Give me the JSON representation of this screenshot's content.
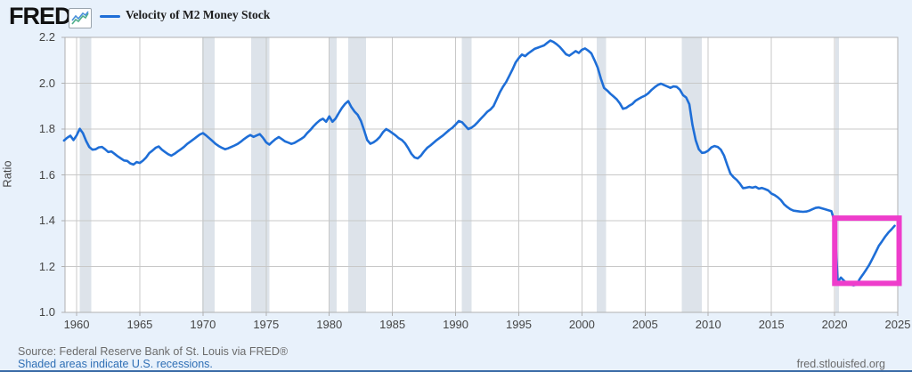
{
  "header": {
    "logo_text": "FRED",
    "registered_mark": "®",
    "logo_icon": "line-chart-sparkline-icon",
    "legend": {
      "swatch_color": "#1e6ed7",
      "label": "Velocity of M2 Money Stock"
    }
  },
  "footer": {
    "source": "Source: Federal Reserve Bank of St. Louis via FRED®",
    "recession_note": "Shaded areas indicate U.S. recessions.",
    "site": "fred.stlouisfed.org"
  },
  "colors": {
    "page_bg": "#e8f1fb",
    "plot_bg": "#ffffff",
    "grid": "#c8c8c8",
    "plot_border": "#b0b0b0",
    "recession_band": "#dde3ea",
    "line": "#1e6ed7",
    "highlight_box": "#ee3dcb",
    "link": "#2f6fb5",
    "text_muted": "#6b6b6b",
    "bottom_bar": "#3a6ba6",
    "icon_line_blue": "#4a90d9",
    "icon_line_green": "#4fae8b"
  },
  "chart_data": {
    "type": "line",
    "title": "Velocity of M2 Money Stock",
    "xlabel": "",
    "ylabel": "Ratio",
    "xlim": [
      1959.08,
      2025.0
    ],
    "ylim": [
      1.0,
      2.2
    ],
    "x_ticks": [
      1960,
      1965,
      1970,
      1975,
      1980,
      1985,
      1990,
      1995,
      2000,
      2005,
      2010,
      2015,
      2020,
      2025
    ],
    "y_ticks": [
      1.0,
      1.2,
      1.4,
      1.6,
      1.8,
      2.0,
      2.2
    ],
    "grid": true,
    "legend_position": "top-left",
    "recessions": [
      [
        1960.25,
        1961.17
      ],
      [
        1969.92,
        1970.92
      ],
      [
        1973.83,
        1975.25
      ],
      [
        1980.0,
        1980.58
      ],
      [
        1981.5,
        1982.92
      ],
      [
        1990.5,
        1991.25
      ],
      [
        2001.17,
        2001.92
      ],
      [
        2007.92,
        2009.5
      ],
      [
        2020.08,
        2020.33
      ]
    ],
    "highlight_box": {
      "year_range": [
        2019.8,
        2025.32
      ],
      "value_range": [
        1.115,
        1.423
      ]
    },
    "series": [
      {
        "name": "Velocity of M2 Money Stock",
        "color": "#1e6ed7",
        "points": [
          [
            1959.0,
            1.75
          ],
          [
            1959.25,
            1.762
          ],
          [
            1959.5,
            1.771
          ],
          [
            1959.75,
            1.752
          ],
          [
            1960.0,
            1.772
          ],
          [
            1960.25,
            1.801
          ],
          [
            1960.5,
            1.782
          ],
          [
            1960.75,
            1.748
          ],
          [
            1961.0,
            1.722
          ],
          [
            1961.25,
            1.71
          ],
          [
            1961.5,
            1.712
          ],
          [
            1961.75,
            1.72
          ],
          [
            1962.0,
            1.722
          ],
          [
            1962.25,
            1.712
          ],
          [
            1962.5,
            1.7
          ],
          [
            1962.75,
            1.702
          ],
          [
            1963.0,
            1.692
          ],
          [
            1963.25,
            1.681
          ],
          [
            1963.5,
            1.672
          ],
          [
            1963.75,
            1.663
          ],
          [
            1964.0,
            1.661
          ],
          [
            1964.25,
            1.65
          ],
          [
            1964.5,
            1.645
          ],
          [
            1964.75,
            1.656
          ],
          [
            1965.0,
            1.652
          ],
          [
            1965.25,
            1.662
          ],
          [
            1965.5,
            1.676
          ],
          [
            1965.75,
            1.695
          ],
          [
            1966.0,
            1.706
          ],
          [
            1966.25,
            1.718
          ],
          [
            1966.5,
            1.724
          ],
          [
            1966.75,
            1.71
          ],
          [
            1967.0,
            1.7
          ],
          [
            1967.25,
            1.69
          ],
          [
            1967.5,
            1.684
          ],
          [
            1967.75,
            1.692
          ],
          [
            1968.0,
            1.702
          ],
          [
            1968.25,
            1.712
          ],
          [
            1968.5,
            1.722
          ],
          [
            1968.75,
            1.735
          ],
          [
            1969.0,
            1.745
          ],
          [
            1969.25,
            1.755
          ],
          [
            1969.5,
            1.766
          ],
          [
            1969.75,
            1.776
          ],
          [
            1970.0,
            1.782
          ],
          [
            1970.25,
            1.772
          ],
          [
            1970.5,
            1.76
          ],
          [
            1970.75,
            1.748
          ],
          [
            1971.0,
            1.735
          ],
          [
            1971.25,
            1.726
          ],
          [
            1971.5,
            1.718
          ],
          [
            1971.75,
            1.712
          ],
          [
            1972.0,
            1.716
          ],
          [
            1972.25,
            1.722
          ],
          [
            1972.5,
            1.728
          ],
          [
            1972.75,
            1.735
          ],
          [
            1973.0,
            1.745
          ],
          [
            1973.25,
            1.756
          ],
          [
            1973.5,
            1.766
          ],
          [
            1973.75,
            1.774
          ],
          [
            1974.0,
            1.766
          ],
          [
            1974.25,
            1.772
          ],
          [
            1974.5,
            1.778
          ],
          [
            1974.75,
            1.762
          ],
          [
            1975.0,
            1.742
          ],
          [
            1975.25,
            1.732
          ],
          [
            1975.5,
            1.745
          ],
          [
            1975.75,
            1.756
          ],
          [
            1976.0,
            1.765
          ],
          [
            1976.25,
            1.756
          ],
          [
            1976.5,
            1.746
          ],
          [
            1976.75,
            1.741
          ],
          [
            1977.0,
            1.735
          ],
          [
            1977.25,
            1.74
          ],
          [
            1977.5,
            1.748
          ],
          [
            1977.75,
            1.756
          ],
          [
            1978.0,
            1.766
          ],
          [
            1978.25,
            1.782
          ],
          [
            1978.5,
            1.796
          ],
          [
            1978.75,
            1.812
          ],
          [
            1979.0,
            1.826
          ],
          [
            1979.25,
            1.838
          ],
          [
            1979.5,
            1.845
          ],
          [
            1979.75,
            1.832
          ],
          [
            1980.0,
            1.855
          ],
          [
            1980.25,
            1.832
          ],
          [
            1980.5,
            1.846
          ],
          [
            1980.75,
            1.87
          ],
          [
            1981.0,
            1.892
          ],
          [
            1981.25,
            1.91
          ],
          [
            1981.5,
            1.922
          ],
          [
            1981.75,
            1.896
          ],
          [
            1982.0,
            1.876
          ],
          [
            1982.25,
            1.862
          ],
          [
            1982.5,
            1.836
          ],
          [
            1982.75,
            1.796
          ],
          [
            1983.0,
            1.752
          ],
          [
            1983.25,
            1.736
          ],
          [
            1983.5,
            1.742
          ],
          [
            1983.75,
            1.752
          ],
          [
            1984.0,
            1.766
          ],
          [
            1984.25,
            1.786
          ],
          [
            1984.5,
            1.8
          ],
          [
            1984.75,
            1.792
          ],
          [
            1985.0,
            1.782
          ],
          [
            1985.25,
            1.772
          ],
          [
            1985.5,
            1.76
          ],
          [
            1985.75,
            1.752
          ],
          [
            1986.0,
            1.738
          ],
          [
            1986.25,
            1.716
          ],
          [
            1986.5,
            1.692
          ],
          [
            1986.75,
            1.676
          ],
          [
            1987.0,
            1.672
          ],
          [
            1987.25,
            1.684
          ],
          [
            1987.5,
            1.702
          ],
          [
            1987.75,
            1.718
          ],
          [
            1988.0,
            1.728
          ],
          [
            1988.25,
            1.74
          ],
          [
            1988.5,
            1.752
          ],
          [
            1988.75,
            1.762
          ],
          [
            1989.0,
            1.772
          ],
          [
            1989.25,
            1.784
          ],
          [
            1989.5,
            1.796
          ],
          [
            1989.75,
            1.806
          ],
          [
            1990.0,
            1.82
          ],
          [
            1990.25,
            1.835
          ],
          [
            1990.5,
            1.83
          ],
          [
            1990.75,
            1.815
          ],
          [
            1991.0,
            1.8
          ],
          [
            1991.25,
            1.806
          ],
          [
            1991.5,
            1.816
          ],
          [
            1991.75,
            1.83
          ],
          [
            1992.0,
            1.845
          ],
          [
            1992.25,
            1.86
          ],
          [
            1992.5,
            1.875
          ],
          [
            1992.75,
            1.885
          ],
          [
            1993.0,
            1.9
          ],
          [
            1993.25,
            1.93
          ],
          [
            1993.5,
            1.96
          ],
          [
            1993.75,
            1.985
          ],
          [
            1994.0,
            2.005
          ],
          [
            1994.25,
            2.032
          ],
          [
            1994.5,
            2.06
          ],
          [
            1994.75,
            2.09
          ],
          [
            1995.0,
            2.11
          ],
          [
            1995.25,
            2.125
          ],
          [
            1995.5,
            2.118
          ],
          [
            1995.75,
            2.13
          ],
          [
            1996.0,
            2.14
          ],
          [
            1996.25,
            2.15
          ],
          [
            1996.5,
            2.155
          ],
          [
            1996.75,
            2.16
          ],
          [
            1997.0,
            2.165
          ],
          [
            1997.25,
            2.176
          ],
          [
            1997.5,
            2.186
          ],
          [
            1997.75,
            2.18
          ],
          [
            1998.0,
            2.17
          ],
          [
            1998.25,
            2.158
          ],
          [
            1998.5,
            2.142
          ],
          [
            1998.75,
            2.126
          ],
          [
            1999.0,
            2.12
          ],
          [
            1999.25,
            2.13
          ],
          [
            1999.5,
            2.14
          ],
          [
            1999.75,
            2.132
          ],
          [
            2000.0,
            2.146
          ],
          [
            2000.25,
            2.152
          ],
          [
            2000.5,
            2.142
          ],
          [
            2000.75,
            2.13
          ],
          [
            2001.0,
            2.1
          ],
          [
            2001.25,
            2.068
          ],
          [
            2001.5,
            2.02
          ],
          [
            2001.75,
            1.98
          ],
          [
            2002.0,
            1.968
          ],
          [
            2002.25,
            1.954
          ],
          [
            2002.5,
            1.942
          ],
          [
            2002.75,
            1.93
          ],
          [
            2003.0,
            1.912
          ],
          [
            2003.25,
            1.888
          ],
          [
            2003.5,
            1.892
          ],
          [
            2003.75,
            1.902
          ],
          [
            2004.0,
            1.91
          ],
          [
            2004.25,
            1.924
          ],
          [
            2004.5,
            1.932
          ],
          [
            2004.75,
            1.94
          ],
          [
            2005.0,
            1.946
          ],
          [
            2005.25,
            1.956
          ],
          [
            2005.5,
            1.97
          ],
          [
            2005.75,
            1.982
          ],
          [
            2006.0,
            1.992
          ],
          [
            2006.25,
            1.998
          ],
          [
            2006.5,
            1.992
          ],
          [
            2006.75,
            1.986
          ],
          [
            2007.0,
            1.98
          ],
          [
            2007.25,
            1.986
          ],
          [
            2007.5,
            1.984
          ],
          [
            2007.75,
            1.972
          ],
          [
            2008.0,
            1.948
          ],
          [
            2008.25,
            1.938
          ],
          [
            2008.5,
            1.908
          ],
          [
            2008.75,
            1.818
          ],
          [
            2009.0,
            1.752
          ],
          [
            2009.25,
            1.712
          ],
          [
            2009.5,
            1.696
          ],
          [
            2009.75,
            1.698
          ],
          [
            2010.0,
            1.706
          ],
          [
            2010.25,
            1.72
          ],
          [
            2010.5,
            1.726
          ],
          [
            2010.75,
            1.722
          ],
          [
            2011.0,
            1.71
          ],
          [
            2011.25,
            1.684
          ],
          [
            2011.5,
            1.644
          ],
          [
            2011.75,
            1.606
          ],
          [
            2012.0,
            1.59
          ],
          [
            2012.25,
            1.578
          ],
          [
            2012.5,
            1.562
          ],
          [
            2012.75,
            1.542
          ],
          [
            2013.0,
            1.544
          ],
          [
            2013.25,
            1.547
          ],
          [
            2013.5,
            1.544
          ],
          [
            2013.75,
            1.548
          ],
          [
            2014.0,
            1.54
          ],
          [
            2014.25,
            1.543
          ],
          [
            2014.5,
            1.538
          ],
          [
            2014.75,
            1.532
          ],
          [
            2015.0,
            1.518
          ],
          [
            2015.25,
            1.512
          ],
          [
            2015.5,
            1.502
          ],
          [
            2015.75,
            1.49
          ],
          [
            2016.0,
            1.472
          ],
          [
            2016.25,
            1.46
          ],
          [
            2016.5,
            1.45
          ],
          [
            2016.75,
            1.444
          ],
          [
            2017.0,
            1.442
          ],
          [
            2017.25,
            1.44
          ],
          [
            2017.5,
            1.439
          ],
          [
            2017.75,
            1.44
          ],
          [
            2018.0,
            1.444
          ],
          [
            2018.25,
            1.45
          ],
          [
            2018.5,
            1.456
          ],
          [
            2018.75,
            1.458
          ],
          [
            2019.0,
            1.454
          ],
          [
            2019.25,
            1.45
          ],
          [
            2019.5,
            1.446
          ],
          [
            2019.75,
            1.442
          ],
          [
            2020.0,
            1.396
          ],
          [
            2020.25,
            1.132
          ],
          [
            2020.5,
            1.152
          ],
          [
            2020.75,
            1.138
          ],
          [
            2021.0,
            1.126
          ],
          [
            2021.25,
            1.122
          ],
          [
            2021.5,
            1.118
          ],
          [
            2021.75,
            1.122
          ],
          [
            2022.0,
            1.146
          ],
          [
            2022.25,
            1.166
          ],
          [
            2022.5,
            1.186
          ],
          [
            2022.75,
            1.208
          ],
          [
            2023.0,
            1.234
          ],
          [
            2023.25,
            1.262
          ],
          [
            2023.5,
            1.29
          ],
          [
            2023.75,
            1.31
          ],
          [
            2024.0,
            1.33
          ],
          [
            2024.25,
            1.348
          ],
          [
            2024.5,
            1.362
          ],
          [
            2024.75,
            1.378
          ]
        ]
      }
    ]
  }
}
